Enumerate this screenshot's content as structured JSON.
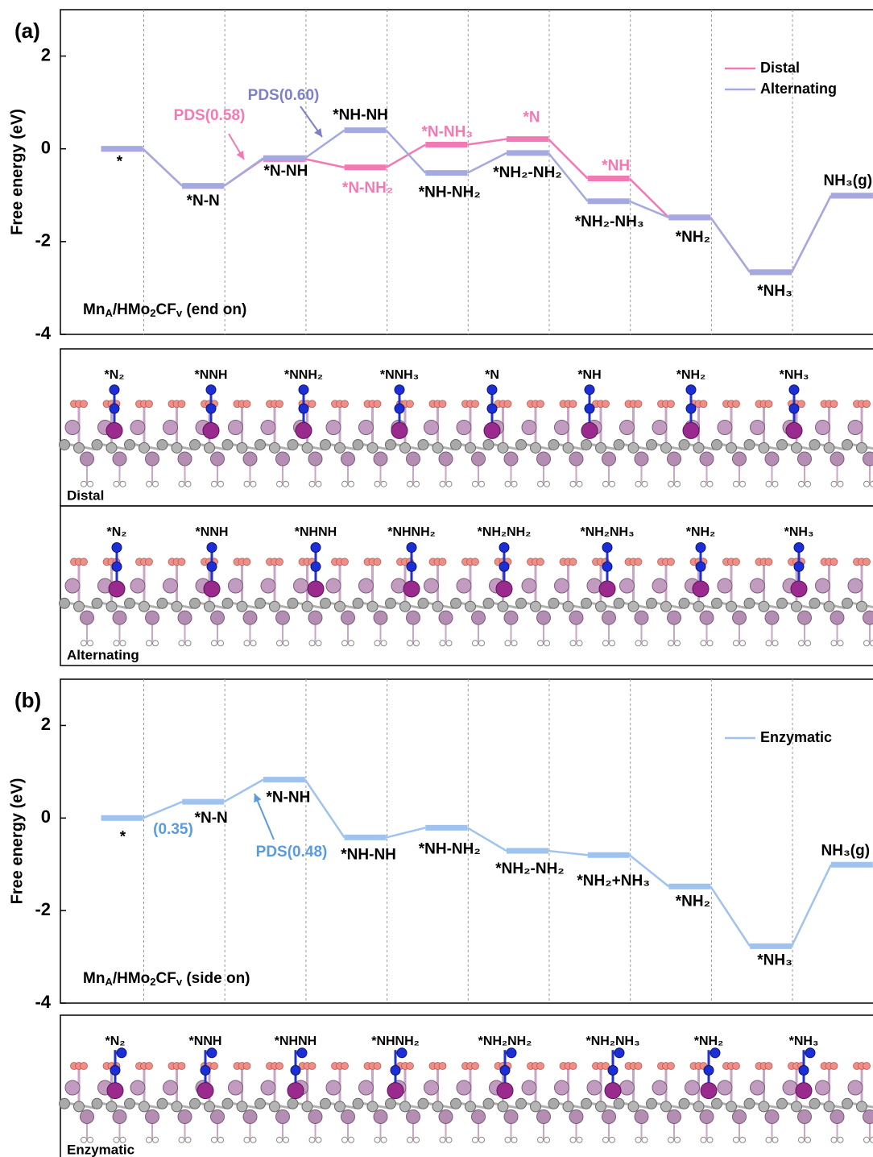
{
  "chart_data": [
    {
      "type": "step",
      "panel_label": "(a)",
      "ylabel": "Free energy (eV)",
      "ylim": [
        -4,
        3
      ],
      "yticks": [
        -4,
        -2,
        0,
        2
      ],
      "xgrid": true,
      "legend": "upper right",
      "note_parts": [
        "Mn",
        "A",
        "/HMo",
        "2",
        "CF",
        "v",
        " (end on)"
      ],
      "categories": [
        "*",
        "*N-N",
        "*N-NH",
        null,
        null,
        null,
        null,
        "*NH₂",
        "*NH₃",
        "NH₃(g)"
      ],
      "series": [
        {
          "name": "Distal",
          "color": "#f27ab4",
          "label_color": "#f27ab4",
          "labels": [
            null,
            null,
            null,
            "*N-NH₂",
            "*N-NH₃",
            "*N",
            "*NH",
            null,
            null,
            null
          ],
          "values": [
            0,
            -0.8,
            -0.22,
            -0.4,
            0.09,
            0.21,
            -0.64,
            -1.48,
            -2.66,
            -1.01
          ]
        },
        {
          "name": "Alternating",
          "color": "#a4a9e2",
          "label_color": "#000000",
          "labels": [
            null,
            null,
            null,
            "*NH-NH",
            "*NH-NH₂",
            "*NH₂-NH₂",
            "*NH₂-NH₃",
            null,
            null,
            null
          ],
          "values": [
            0,
            -0.8,
            -0.2,
            0.4,
            -0.52,
            -0.09,
            -1.13,
            -1.48,
            -2.66,
            -1.01
          ]
        }
      ],
      "annotations": [
        {
          "text": "PDS(0.58)",
          "color": "#f27ab4"
        },
        {
          "text": "PDS(0.60)",
          "color": "#7d80c9"
        }
      ]
    },
    {
      "type": "step",
      "panel_label": "(b)",
      "ylabel": "Free energy (eV)",
      "ylim": [
        -4,
        3
      ],
      "yticks": [
        -4,
        -2,
        0,
        2
      ],
      "xgrid": true,
      "legend": "upper right",
      "note_parts": [
        "Mn",
        "A",
        "/HMo",
        "2",
        "CF",
        "v",
        " (side on)"
      ],
      "categories": [
        "*",
        "*N-N",
        "*N-NH",
        "*NH-NH",
        "*NH-NH₂",
        "*NH₂-NH₂",
        "*NH₂+NH₃",
        "*NH₂",
        "*NH₃",
        "NH₃(g)"
      ],
      "series": [
        {
          "name": "Enzymatic",
          "color": "#9fc3ee",
          "label_color": "#000000",
          "values": [
            0,
            0.35,
            0.83,
            -0.42,
            -0.21,
            -0.71,
            -0.8,
            -1.48,
            -2.77,
            -1.01
          ]
        }
      ],
      "annotations": [
        {
          "text": "(0.35)",
          "color": "#5a9be0"
        },
        {
          "text": "PDS(0.48)",
          "color": "#5a9be0"
        }
      ]
    }
  ],
  "structure_panels": [
    {
      "name": "Distal",
      "labels": [
        "*N₂",
        "*NNH",
        "*NNH₂",
        "*NNH₃",
        "*N",
        "*NH",
        "*NH₂",
        "*NH₃"
      ]
    },
    {
      "name": "Alternating",
      "labels": [
        "*N₂",
        "*NNH",
        "*NHNH",
        "*NHNH₂",
        "*NH₂NH₂",
        "*NH₂NH₃",
        "*NH₂",
        "*NH₃"
      ]
    },
    {
      "name": "Enzymatic",
      "labels": [
        "*N₂",
        "*NNH",
        "*NHNH",
        "*NHNH₂",
        "*NH₂NH₂",
        "*NH₂NH₃",
        "*NH₂",
        "*NH₃"
      ]
    }
  ]
}
